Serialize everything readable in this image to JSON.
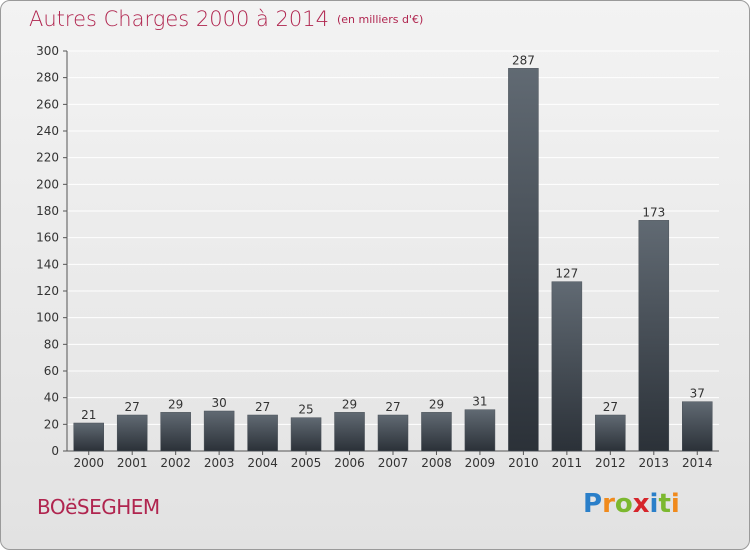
{
  "header": {
    "title": "Autres Charges 2000 à 2014",
    "subtitle": "(en milliers d'€)"
  },
  "commune": "BOëSEGHEM",
  "logo": {
    "letters": [
      "P",
      "r",
      "o",
      "x",
      "i",
      "t",
      "i"
    ],
    "colors": [
      "#2a7fc9",
      "#f08a1c",
      "#7cb82f",
      "#d6252b",
      "#2a7fc9",
      "#7cb82f",
      "#f08a1c"
    ]
  },
  "colors": {
    "title": "#b0254f",
    "bar_top": "#616a73",
    "bar_bottom": "#2b3138",
    "grid": "#ffffff"
  },
  "chart_data": {
    "type": "bar",
    "categories": [
      "2000",
      "2001",
      "2002",
      "2003",
      "2004",
      "2005",
      "2006",
      "2007",
      "2008",
      "2009",
      "2010",
      "2011",
      "2012",
      "2013",
      "2014"
    ],
    "values": [
      21,
      27,
      29,
      30,
      27,
      25,
      29,
      27,
      29,
      31,
      287,
      127,
      27,
      173,
      37
    ],
    "yticks": [
      0,
      20,
      40,
      60,
      80,
      100,
      120,
      140,
      160,
      180,
      200,
      220,
      240,
      260,
      280,
      300
    ],
    "ylim": [
      0,
      300
    ],
    "grid": true,
    "data_labels": true
  }
}
